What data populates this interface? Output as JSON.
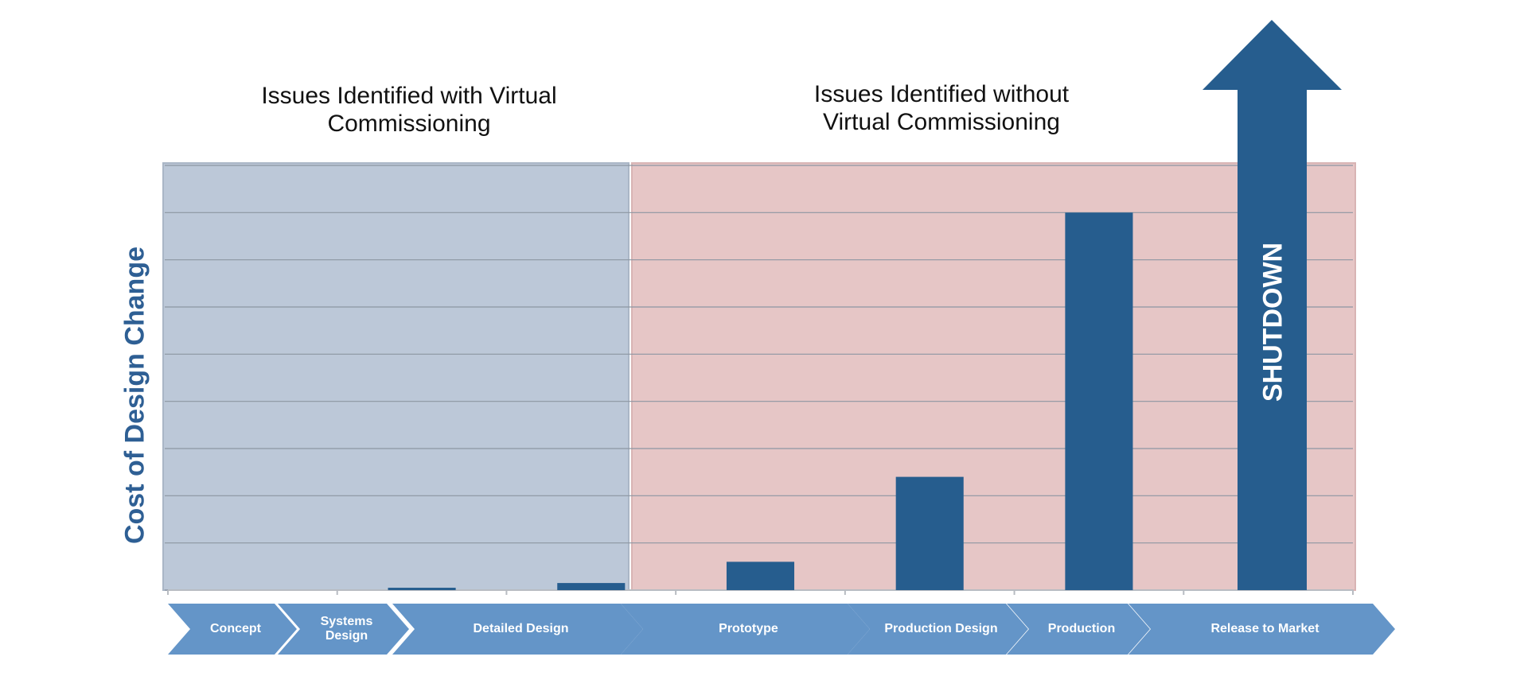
{
  "chart_data": {
    "type": "bar",
    "title_left": "Issues Identified with Virtual Commissioning",
    "title_right": "Issues Identified without Virtual Commissioning",
    "y_label": "Cost of Design Change",
    "annotation": "SHUTDOWN",
    "categories": [
      "Concept",
      "Systems Design",
      "Detailed Design",
      "Prototype",
      "Production Design",
      "Production",
      "Release to Market"
    ],
    "values": [
      0,
      0.05,
      0.15,
      0.6,
      2.4,
      8,
      null
    ],
    "color": "#265d8e",
    "ylim": [
      0,
      9
    ],
    "yticks": [
      0,
      1,
      2,
      3,
      4,
      5,
      6,
      7,
      8,
      9
    ],
    "grid": true
  }
}
